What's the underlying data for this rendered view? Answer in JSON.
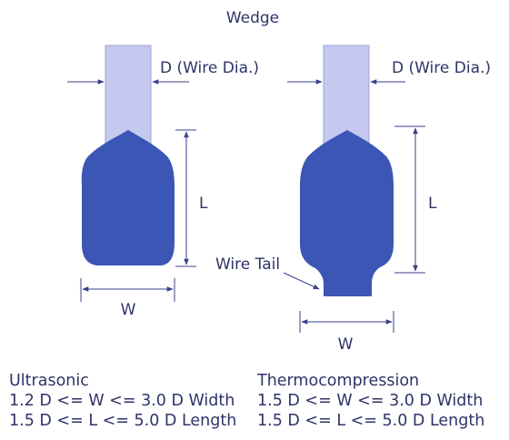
{
  "title": "Wedge",
  "labels": {
    "wire_dia": "D (Wire Dia.)",
    "length": "L",
    "width": "W",
    "wire_tail": "Wire Tail"
  },
  "left_caption": {
    "heading": "Ultrasonic",
    "line1": "1.2 D <= W <= 3.0 D Width",
    "line2": "1.5 D <= L <= 5.0 D Length"
  },
  "right_caption": {
    "heading": "Thermocompression",
    "line1": "1.5 D <= W <= 3.0 D Width",
    "line2": "1.5 D <= L <= 5.0 D Length"
  },
  "colors": {
    "wire": "#c5c8ef",
    "wire_stroke": "#9da3dc",
    "bond": "#3b56b4",
    "dimension_line": "#3a418a",
    "text": "#2e3468"
  }
}
